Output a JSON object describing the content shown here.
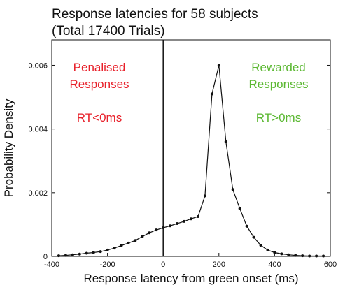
{
  "chart_data": {
    "type": "line",
    "title_lines": [
      "Response latencies for 58 subjects",
      "(Total 17400 Trials)"
    ],
    "xlabel": "Response latency from green onset (ms)",
    "ylabel": "Probability Density",
    "xlim": [
      -400,
      600
    ],
    "ylim": [
      0,
      0.0068
    ],
    "x_ticks": [
      -400,
      -200,
      0,
      200,
      400,
      600
    ],
    "x_tick_labels": [
      "-400",
      "-200",
      "0",
      "200",
      "400",
      "600"
    ],
    "y_ticks": [
      0,
      0.002,
      0.004,
      0.006
    ],
    "y_tick_labels": [
      "0",
      "0.002",
      "0.004",
      "0.006"
    ],
    "grid": false,
    "reference_line_x": 0,
    "series": [
      {
        "color": "#111111",
        "x": [
          -375,
          -350,
          -325,
          -300,
          -275,
          -250,
          -225,
          -200,
          -175,
          -150,
          -125,
          -100,
          -75,
          -50,
          -25,
          0,
          25,
          50,
          75,
          100,
          125,
          150,
          175,
          200,
          225,
          250,
          275,
          300,
          325,
          350,
          375,
          400,
          425,
          450,
          475,
          500,
          525,
          550,
          575
        ],
        "y": [
          2e-05,
          3e-05,
          5e-05,
          7e-05,
          0.0001,
          0.00012,
          0.00015,
          0.0002,
          0.00026,
          0.00034,
          0.00042,
          0.0005,
          0.00062,
          0.00074,
          0.00083,
          0.0009,
          0.00096,
          0.00103,
          0.0011,
          0.00118,
          0.00125,
          0.0019,
          0.0051,
          0.006,
          0.0036,
          0.0021,
          0.0015,
          0.00095,
          0.0006,
          0.00035,
          0.0002,
          0.00012,
          8e-05,
          5e-05,
          3e-05,
          2e-05,
          1e-05,
          1e-05,
          1e-05
        ]
      }
    ],
    "annotations": [
      {
        "lines": [
          "Penalised",
          "Responses",
          "",
          "RT<0ms"
        ],
        "color": "#e8202a",
        "side": "left"
      },
      {
        "lines": [
          "Rewarded",
          "Responses",
          "",
          "RT>0ms"
        ],
        "color": "#5bb832",
        "side": "right"
      }
    ]
  }
}
